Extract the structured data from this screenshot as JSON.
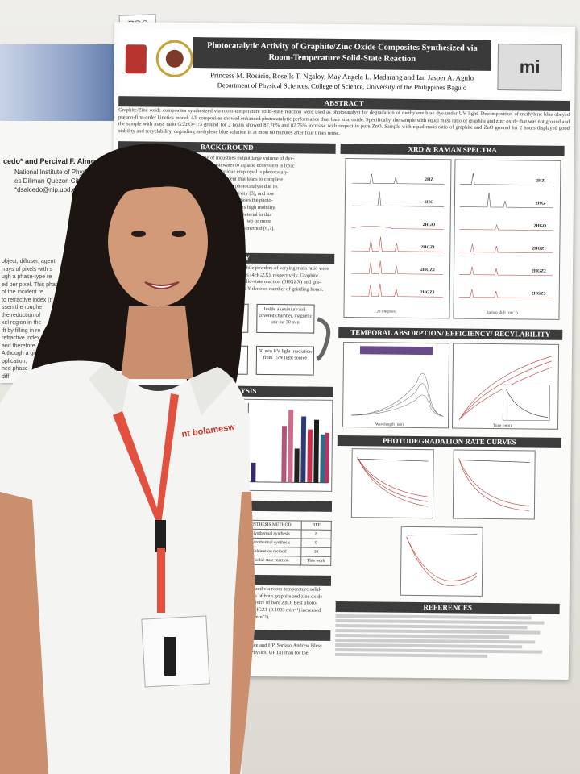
{
  "booth_tag": "P26",
  "left_poster": {
    "authors": "cedo* and Percival F. Almoro",
    "affiliation": [
      "National Institute of Physics",
      "es Diliman Quezon City 1101",
      "*dsalcedo@nip.upd.edu.ph"
    ],
    "body_lines": [
      "object, diffuser, agent",
      "rrays of pixels with s",
      "ugh a phase-type re",
      "ed per pixel. This phase",
      "of the incident re",
      "to refractive index (n",
      "ssen the roughe",
      "the reduction of",
      "xel region in the",
      "ift by filling in re",
      "refractive index",
      "and therefore",
      "Although a gi",
      "pplication,",
      "hed phase-",
      "diff"
    ]
  },
  "poster": {
    "title_line1": "Photocatalytic Activity of Graphite/Zinc Oxide Composites Synthesized via",
    "title_line2": "Room-Temperature Solid-State Reaction",
    "authors": "Princess M. Rosario, Rosells T. Ngaloy, May Angela L. Madarang and Ian Jasper A. Agulo",
    "department": "Department of Physical Sciences, College of Science, University of the Philippines Baguio",
    "logo_text": "mi",
    "sections": {
      "abstract": "ABSTRACT",
      "background": "BACKGROUND",
      "xrd": "XRD & RAMAN SPECTRA",
      "methodology": "THODOLOGY",
      "temporal": "TEMPORAL ABSORPTION/ EFFICIENCY/ RECYLABILITY",
      "kinetics": "NETICS ANALYSIS",
      "photodeg": "PHOTODEGRADATION RATE CURVES",
      "related": "LATED WORKS",
      "references": "REFERENCES",
      "conclusion": "N",
      "acknowledgement": "NT"
    },
    "abstract_text": "Graphite/Zinc oxide composites synthesized via room-temperature solid-state reaction were used as photocatalyst for degradation of methylene blue dye under UV light. Decomposition of methylene blue obeyed pseudo-first-order kinetics model. All composites showed enhanced photocatalytic performance than bare zinc oxide. Specifically, the sample with equal mass ratio of graphite and zinc oxide that was not ground and the sample with mass ratio G:ZnO=1:3 ground for 2 hours showed 87.76% and 82.76% increase with respect to pure ZnO. Sample with equal mass ratio of graphite and ZnO ground for 2 hours displayed good stability and recyclability, degrading methylene blue solution in at most 60 minutes after four times reuse.",
    "background_lines": [
      "etic dyes in wide range of industries output large volume of dye-",
      "ge of these dye-colored wastewater to aquatic ecosystem is toxic",
      "One efficient remediation technique employed is photocataly-",
      "pond pollution wastewater treatment that leads to complete",
      "ature [1]. Zinc oxide is a promising photocatalyst due its",
      "thermal stability [2], high photosensitivity [3], and low",
      "ombination of electron/hole pairs decreases the photo-",
      "own recombination rate, graphite with its high mobility",
      "dance is used as photocatalyst support material in this",
      "ection usually accomplished by grinding two or more",
      "ient and suitable for large-scale synthesis method [6,7]."
    ],
    "methodology_lines": [
      "e and graphite powders of varying mass ratio were",
      "and 4 hours (4HGZX), respectively. Graphite",
      "without solid-state reaction (0HGZX) and gra-",
      "The prefix Y denotes number of grinding hours."
    ],
    "flow": [
      "Inside aluminium foil-covered chamber, magnetic stir for 30 min",
      "60 min UV light irradiation from 15W light source"
    ],
    "xrd_labels": [
      "2HZ",
      "2HG",
      "2HGO",
      "2HGZ1",
      "2HGZ2",
      "2HGZ3"
    ],
    "raman_labels": [
      "2HZ",
      "2HG",
      "2HGO",
      "2HGZ1",
      "2HGZ2",
      "2HGZ3"
    ],
    "xrd_xlabel": "2θ (degrees)",
    "raman_xlabel": "Raman shift (cm⁻¹)",
    "absorb_xlabel": "Wavelength (nm)",
    "time_xlabel": "Time (min)",
    "related_header": [
      "SYNTHESIS METHOD",
      "REF"
    ],
    "related_rows": [
      [
        "Solvothermal synthesis",
        "8"
      ],
      [
        "Hydrothermal synthesis",
        "9"
      ],
      [
        "Calcination method",
        "10"
      ],
      [
        "RT solid-state reaction",
        "This work"
      ]
    ],
    "conclusion_lines": [
      "thesized via room-temperature solid-",
      "sence of both graphite and zinc oxide",
      "c activity of bare ZnO. Best photo-",
      "nd 2HGZ1 (0.1003 min⁻¹) increased",
      "488 min⁻¹)."
    ],
    "ack_lines": [
      "cience and HP. Sariaso Andrew Bless",
      "of Physics, UP Diliman for the"
    ]
  },
  "person": {
    "lanyard_text": "nt bolamesw"
  }
}
